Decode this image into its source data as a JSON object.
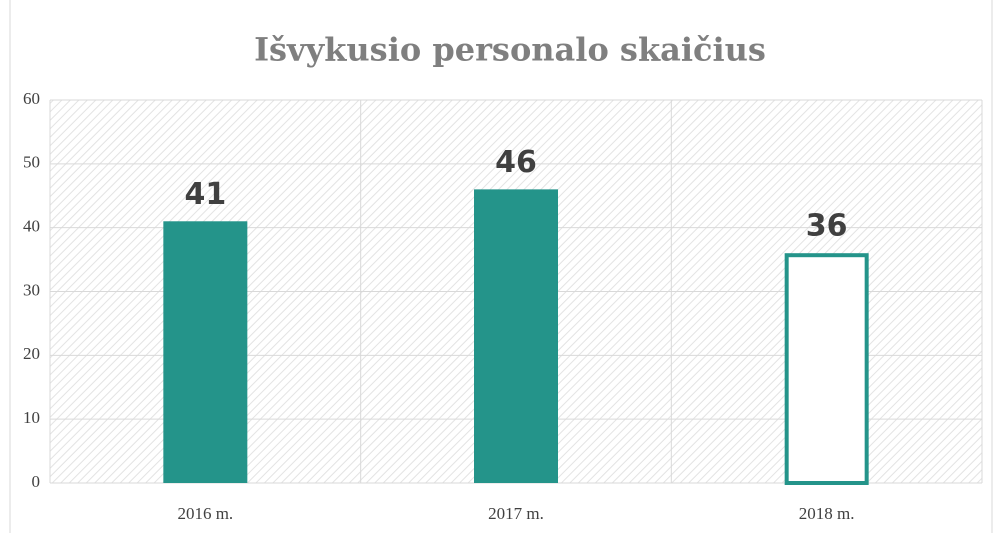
{
  "chart_data": {
    "type": "bar",
    "title": "Išvykusio personalo skaičius",
    "categories": [
      "2016 m.",
      "2017 m.",
      "2018 m."
    ],
    "values": [
      41,
      46,
      36
    ],
    "color": "#24948a",
    "bar_styles": [
      "filled",
      "filled",
      "outline"
    ],
    "ylim": [
      0,
      60
    ],
    "yticks": [
      0,
      10,
      20,
      30,
      40,
      50,
      60
    ],
    "grid": true
  }
}
